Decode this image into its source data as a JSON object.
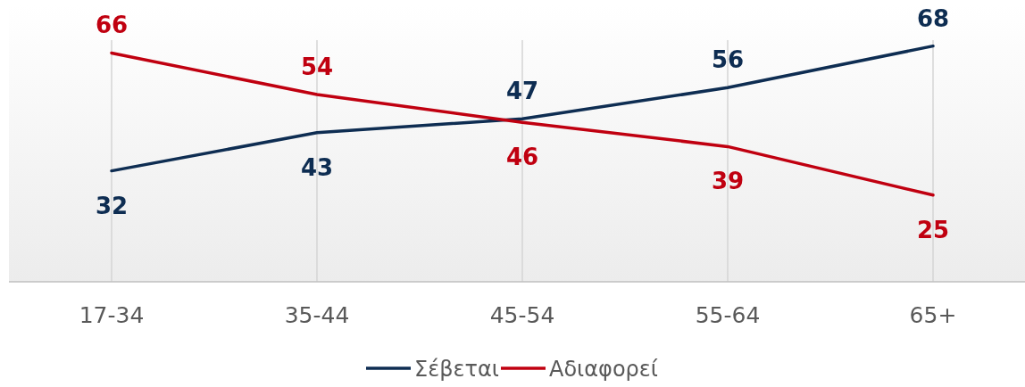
{
  "chart_data": {
    "type": "line",
    "categories": [
      "17-34",
      "35-44",
      "45-54",
      "55-64",
      "65+"
    ],
    "series": [
      {
        "name": "Σέβεται",
        "color": "#0e2d52",
        "values": [
          32,
          43,
          47,
          56,
          68
        ]
      },
      {
        "name": "Αδιαφορεί",
        "color": "#c00010",
        "values": [
          66,
          54,
          46,
          39,
          25
        ]
      }
    ],
    "ylim": [
      0,
      80
    ],
    "data_labels": true,
    "grid": "x",
    "legend": "bottom",
    "marker": "none",
    "line_style": "solid",
    "tick_labels": "x"
  }
}
